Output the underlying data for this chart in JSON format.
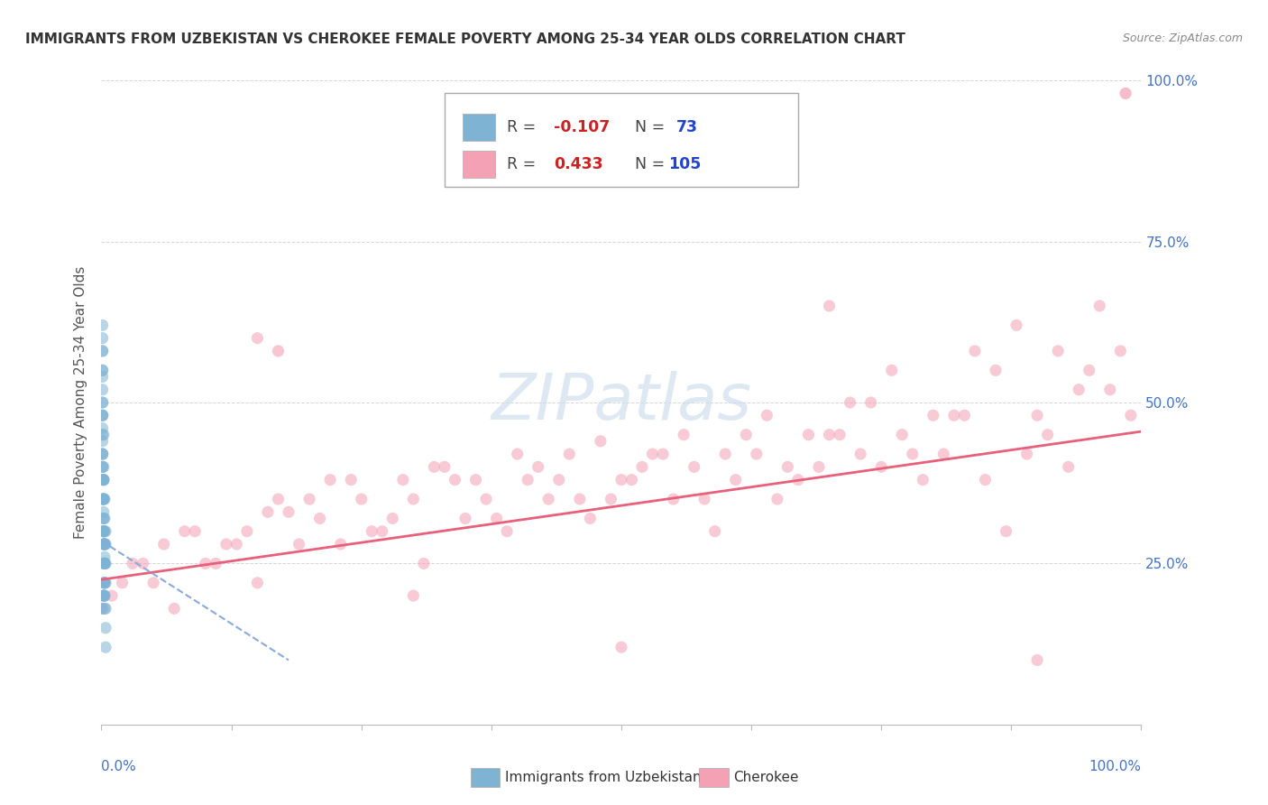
{
  "title": "IMMIGRANTS FROM UZBEKISTAN VS CHEROKEE FEMALE POVERTY AMONG 25-34 YEAR OLDS CORRELATION CHART",
  "source": "Source: ZipAtlas.com",
  "ylabel": "Female Poverty Among 25-34 Year Olds",
  "xlim": [
    0,
    1
  ],
  "ylim": [
    0,
    1
  ],
  "blue_color": "#7fb3d3",
  "pink_color": "#f4a0b5",
  "blue_line_color": "#5599cc",
  "pink_line_color": "#e8607a",
  "watermark_color": "#dde8f0",
  "background_color": "#ffffff",
  "grid_color": "#cccccc",
  "axis_label_color": "#4472c4",
  "title_color": "#333333",
  "legend_R_color": "#cc3333",
  "legend_N_color": "#2244cc",
  "blue_scatter_x": [
    0.002,
    0.003,
    0.001,
    0.001,
    0.004,
    0.002,
    0.003,
    0.001,
    0.002,
    0.003,
    0.001,
    0.002,
    0.004,
    0.003,
    0.001,
    0.002,
    0.003,
    0.001,
    0.002,
    0.004,
    0.001,
    0.002,
    0.003,
    0.001,
    0.002,
    0.001,
    0.003,
    0.002,
    0.001,
    0.004,
    0.002,
    0.001,
    0.003,
    0.002,
    0.001,
    0.002,
    0.003,
    0.001,
    0.002,
    0.003,
    0.001,
    0.002,
    0.003,
    0.004,
    0.001,
    0.002,
    0.001,
    0.003,
    0.002,
    0.001,
    0.004,
    0.002,
    0.003,
    0.001,
    0.002,
    0.003,
    0.001,
    0.002,
    0.001,
    0.003,
    0.002,
    0.001,
    0.002,
    0.003,
    0.001,
    0.002,
    0.003,
    0.001,
    0.004,
    0.002,
    0.001,
    0.003,
    0.002
  ],
  "blue_scatter_y": [
    0.38,
    0.3,
    0.42,
    0.35,
    0.28,
    0.45,
    0.32,
    0.5,
    0.22,
    0.26,
    0.18,
    0.4,
    0.3,
    0.25,
    0.48,
    0.2,
    0.35,
    0.55,
    0.28,
    0.22,
    0.38,
    0.3,
    0.25,
    0.45,
    0.2,
    0.58,
    0.28,
    0.35,
    0.42,
    0.18,
    0.3,
    0.52,
    0.25,
    0.38,
    0.46,
    0.28,
    0.22,
    0.6,
    0.32,
    0.2,
    0.48,
    0.35,
    0.28,
    0.25,
    0.4,
    0.33,
    0.55,
    0.22,
    0.38,
    0.44,
    0.15,
    0.3,
    0.25,
    0.5,
    0.2,
    0.28,
    0.42,
    0.35,
    0.62,
    0.18,
    0.3,
    0.48,
    0.38,
    0.22,
    0.54,
    0.25,
    0.2,
    0.58,
    0.12,
    0.35,
    0.4,
    0.28,
    0.32
  ],
  "pink_scatter_x": [
    0.01,
    0.03,
    0.05,
    0.07,
    0.09,
    0.11,
    0.13,
    0.15,
    0.17,
    0.19,
    0.21,
    0.23,
    0.25,
    0.27,
    0.29,
    0.31,
    0.33,
    0.35,
    0.37,
    0.39,
    0.41,
    0.43,
    0.45,
    0.47,
    0.49,
    0.51,
    0.53,
    0.55,
    0.57,
    0.59,
    0.61,
    0.63,
    0.65,
    0.67,
    0.69,
    0.71,
    0.73,
    0.75,
    0.77,
    0.79,
    0.81,
    0.83,
    0.85,
    0.87,
    0.89,
    0.91,
    0.93,
    0.95,
    0.97,
    0.99,
    0.02,
    0.06,
    0.1,
    0.14,
    0.18,
    0.22,
    0.26,
    0.3,
    0.34,
    0.38,
    0.42,
    0.46,
    0.5,
    0.54,
    0.58,
    0.62,
    0.66,
    0.7,
    0.74,
    0.78,
    0.82,
    0.86,
    0.9,
    0.94,
    0.98,
    0.04,
    0.08,
    0.12,
    0.16,
    0.2,
    0.24,
    0.28,
    0.32,
    0.36,
    0.4,
    0.44,
    0.48,
    0.52,
    0.56,
    0.6,
    0.64,
    0.68,
    0.72,
    0.76,
    0.8,
    0.84,
    0.88,
    0.92,
    0.96,
    0.0,
    0.15,
    0.3,
    0.5,
    0.7,
    0.9
  ],
  "pink_scatter_y": [
    0.2,
    0.25,
    0.22,
    0.18,
    0.3,
    0.25,
    0.28,
    0.22,
    0.35,
    0.28,
    0.32,
    0.28,
    0.35,
    0.3,
    0.38,
    0.25,
    0.4,
    0.32,
    0.35,
    0.3,
    0.38,
    0.35,
    0.42,
    0.32,
    0.35,
    0.38,
    0.42,
    0.35,
    0.4,
    0.3,
    0.38,
    0.42,
    0.35,
    0.38,
    0.4,
    0.45,
    0.42,
    0.4,
    0.45,
    0.38,
    0.42,
    0.48,
    0.38,
    0.3,
    0.42,
    0.45,
    0.4,
    0.55,
    0.52,
    0.48,
    0.22,
    0.28,
    0.25,
    0.3,
    0.33,
    0.38,
    0.3,
    0.35,
    0.38,
    0.32,
    0.4,
    0.35,
    0.38,
    0.42,
    0.35,
    0.45,
    0.4,
    0.45,
    0.5,
    0.42,
    0.48,
    0.55,
    0.48,
    0.52,
    0.58,
    0.25,
    0.3,
    0.28,
    0.33,
    0.35,
    0.38,
    0.32,
    0.4,
    0.38,
    0.42,
    0.38,
    0.44,
    0.4,
    0.45,
    0.42,
    0.48,
    0.45,
    0.5,
    0.55,
    0.48,
    0.58,
    0.62,
    0.58,
    0.65,
    0.18,
    0.6,
    0.2,
    0.12,
    0.65,
    0.1
  ],
  "pink_line_start_x": 0.0,
  "pink_line_start_y": 0.225,
  "pink_line_end_x": 1.0,
  "pink_line_end_y": 0.455,
  "blue_line_start_x": 0.0,
  "blue_line_start_y": 0.285,
  "blue_line_end_x": 0.18,
  "blue_line_end_y": 0.1
}
